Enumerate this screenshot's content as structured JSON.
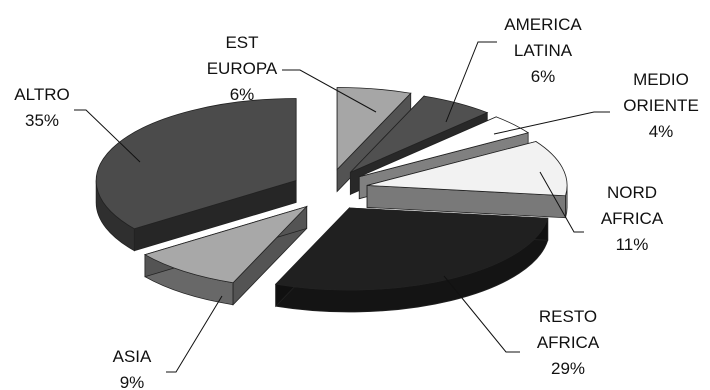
{
  "chart_data": {
    "type": "pie",
    "style": "3d-exploded",
    "slices": [
      {
        "label": "EST EUROPA",
        "label_lines": [
          "EST",
          "EUROPA"
        ],
        "value": 6,
        "value_text": "6%",
        "color": "#a6a6a6"
      },
      {
        "label": "AMERICA LATINA",
        "label_lines": [
          "AMERICA",
          "LATINA"
        ],
        "value": 6,
        "value_text": "6%",
        "color": "#505050"
      },
      {
        "label": "MEDIO ORIENTE",
        "label_lines": [
          "MEDIO",
          "ORIENTE"
        ],
        "value": 4,
        "value_text": "4%",
        "color": "#ffffff"
      },
      {
        "label": "NORD AFRICA",
        "label_lines": [
          "NORD",
          "AFRICA"
        ],
        "value": 11,
        "value_text": "11%",
        "color": "#f2f2f2"
      },
      {
        "label": "RESTO AFRICA",
        "label_lines": [
          "RESTO",
          "AFRICA"
        ],
        "value": 29,
        "value_text": "29%",
        "color": "#202020"
      },
      {
        "label": "ASIA",
        "label_lines": [
          "ASIA"
        ],
        "value": 9,
        "value_text": "9%",
        "color": "#a8a8a8"
      },
      {
        "label": "ALTRO",
        "label_lines": [
          "ALTRO"
        ],
        "value": 35,
        "value_text": "35%",
        "color": "#4b4b4b"
      }
    ]
  }
}
